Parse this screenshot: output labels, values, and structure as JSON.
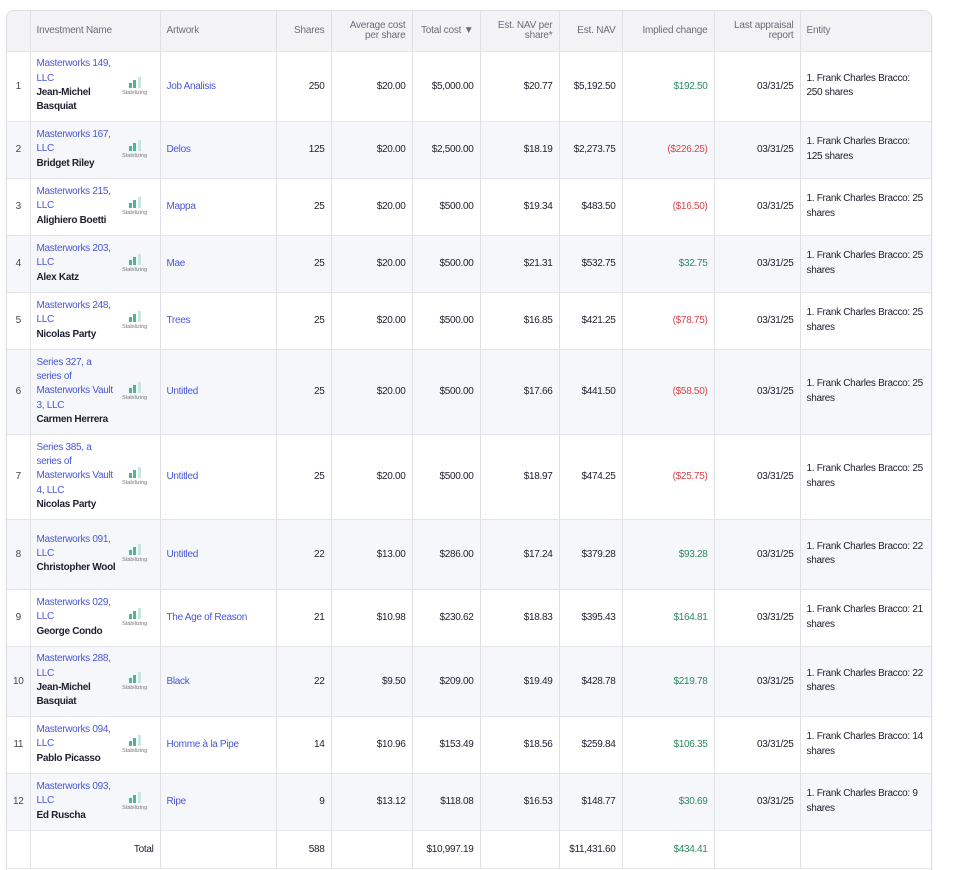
{
  "table": {
    "headers": {
      "name": "Investment Name",
      "artwork": "Artwork",
      "shares": "Shares",
      "avg_cost": "Average cost per share",
      "total_cost": "Total cost ▼",
      "nav_per_share": "Est. NAV per share*",
      "nav": "Est. NAV",
      "implied_change": "Implied change",
      "appraisal": "Last appraisal report",
      "entity": "Entity"
    },
    "badge_label": "Stabilizing",
    "rows": [
      {
        "num": "1",
        "name": "Masterworks 149, LLC",
        "artist": "Jean-Michel Basquiat",
        "artwork": "Job Analisis",
        "shares": "250",
        "avg_cost": "$20.00",
        "total_cost": "$5,000.00",
        "nav_per_share": "$20.77",
        "nav": "$5,192.50",
        "change": "$192.50",
        "change_sign": "pos",
        "appraisal": "03/31/25",
        "entity": "1. Frank Charles Bracco: 250 shares"
      },
      {
        "num": "2",
        "name": "Masterworks 167, LLC",
        "artist": "Bridget Riley",
        "artwork": "Delos",
        "shares": "125",
        "avg_cost": "$20.00",
        "total_cost": "$2,500.00",
        "nav_per_share": "$18.19",
        "nav": "$2,273.75",
        "change": "($226.25)",
        "change_sign": "neg",
        "appraisal": "03/31/25",
        "entity": "1. Frank Charles Bracco: 125 shares"
      },
      {
        "num": "3",
        "name": "Masterworks 215, LLC",
        "artist": "Alighiero Boetti",
        "artwork": "Mappa",
        "shares": "25",
        "avg_cost": "$20.00",
        "total_cost": "$500.00",
        "nav_per_share": "$19.34",
        "nav": "$483.50",
        "change": "($16.50)",
        "change_sign": "neg",
        "appraisal": "03/31/25",
        "entity": "1. Frank Charles Bracco: 25 shares"
      },
      {
        "num": "4",
        "name": "Masterworks 203, LLC",
        "artist": "Alex Katz",
        "artwork": "Mae",
        "shares": "25",
        "avg_cost": "$20.00",
        "total_cost": "$500.00",
        "nav_per_share": "$21.31",
        "nav": "$532.75",
        "change": "$32.75",
        "change_sign": "pos",
        "appraisal": "03/31/25",
        "entity": "1. Frank Charles Bracco: 25 shares"
      },
      {
        "num": "5",
        "name": "Masterworks 248, LLC",
        "artist": "Nicolas Party",
        "artwork": "Trees",
        "shares": "25",
        "avg_cost": "$20.00",
        "total_cost": "$500.00",
        "nav_per_share": "$16.85",
        "nav": "$421.25",
        "change": "($78.75)",
        "change_sign": "neg",
        "appraisal": "03/31/25",
        "entity": "1. Frank Charles Bracco: 25 shares"
      },
      {
        "num": "6",
        "name": "Series 327, a series of Masterworks Vault 3, LLC",
        "artist": "Carmen Herrera",
        "artwork": "Untitled",
        "shares": "25",
        "avg_cost": "$20.00",
        "total_cost": "$500.00",
        "nav_per_share": "$17.66",
        "nav": "$441.50",
        "change": "($58.50)",
        "change_sign": "neg",
        "appraisal": "03/31/25",
        "entity": "1. Frank Charles Bracco: 25 shares"
      },
      {
        "num": "7",
        "name": "Series 385, a series of Masterworks Vault 4, LLC",
        "artist": "Nicolas Party",
        "artwork": "Untitled",
        "shares": "25",
        "avg_cost": "$20.00",
        "total_cost": "$500.00",
        "nav_per_share": "$18.97",
        "nav": "$474.25",
        "change": "($25.75)",
        "change_sign": "neg",
        "appraisal": "03/31/25",
        "entity": "1. Frank Charles Bracco: 25 shares"
      },
      {
        "num": "8",
        "name": "Masterworks 091, LLC",
        "artist": "Christopher Wool",
        "artwork": "Untitled",
        "shares": "22",
        "avg_cost": "$13.00",
        "total_cost": "$286.00",
        "nav_per_share": "$17.24",
        "nav": "$379.28",
        "change": "$93.28",
        "change_sign": "pos",
        "appraisal": "03/31/25",
        "entity": "1. Frank Charles Bracco: 22 shares"
      },
      {
        "num": "9",
        "name": "Masterworks 029, LLC",
        "artist": "George Condo",
        "artwork": "The Age of Reason",
        "shares": "21",
        "avg_cost": "$10.98",
        "total_cost": "$230.62",
        "nav_per_share": "$18.83",
        "nav": "$395.43",
        "change": "$164.81",
        "change_sign": "pos",
        "appraisal": "03/31/25",
        "entity": "1. Frank Charles Bracco: 21 shares"
      },
      {
        "num": "10",
        "name": "Masterworks 288, LLC",
        "artist": "Jean-Michel Basquiat",
        "artwork": "Black",
        "shares": "22",
        "avg_cost": "$9.50",
        "total_cost": "$209.00",
        "nav_per_share": "$19.49",
        "nav": "$428.78",
        "change": "$219.78",
        "change_sign": "pos",
        "appraisal": "03/31/25",
        "entity": "1. Frank Charles Bracco: 22 shares"
      },
      {
        "num": "11",
        "name": "Masterworks 094, LLC",
        "artist": "Pablo Picasso",
        "artwork": "Homme à la Pipe",
        "shares": "14",
        "avg_cost": "$10.96",
        "total_cost": "$153.49",
        "nav_per_share": "$18.56",
        "nav": "$259.84",
        "change": "$106.35",
        "change_sign": "pos",
        "appraisal": "03/31/25",
        "entity": "1. Frank Charles Bracco: 14 shares"
      },
      {
        "num": "12",
        "name": "Masterworks 093, LLC",
        "artist": "Ed Ruscha",
        "artwork": "Ripe",
        "shares": "9",
        "avg_cost": "$13.12",
        "total_cost": "$118.08",
        "nav_per_share": "$16.53",
        "nav": "$148.77",
        "change": "$30.69",
        "change_sign": "pos",
        "appraisal": "03/31/25",
        "entity": "1. Frank Charles Bracco: 9 shares"
      }
    ],
    "total": {
      "label": "Total",
      "shares": "588",
      "total_cost": "$10,997.19",
      "nav": "$11,431.60",
      "change": "$434.41"
    }
  },
  "colors": {
    "link": "#4a56d6",
    "positive": "#2d8a5f",
    "negative": "#d8454b",
    "stabilizing_bar": "#4fb49a"
  }
}
